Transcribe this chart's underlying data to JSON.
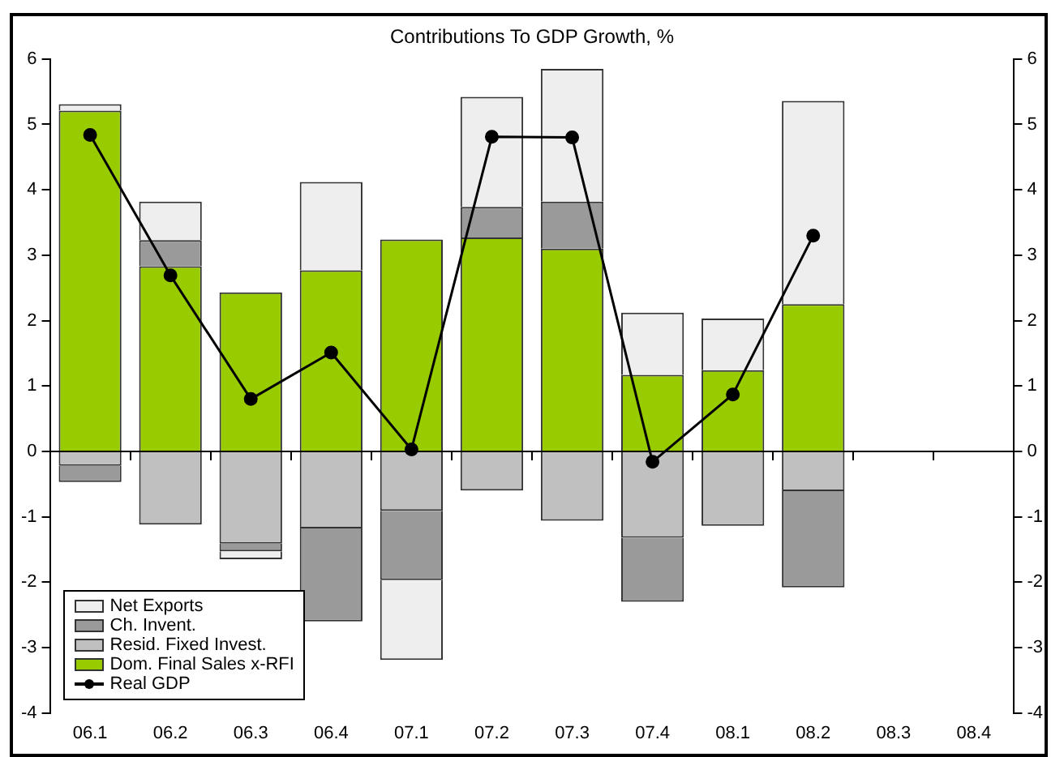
{
  "chart_data": {
    "type": "bar",
    "title": "Contributions To GDP Growth, %",
    "stacked": true,
    "legend": "bottom left",
    "marker": "circle",
    "line_style": "solid",
    "categories": [
      "06.1",
      "06.2",
      "06.3",
      "06.4",
      "07.1",
      "07.2",
      "07.3",
      "07.4",
      "08.1",
      "08.2",
      "08.3",
      "08.4"
    ],
    "ylim": [
      -4,
      6
    ],
    "yticks": [
      -4,
      -3,
      -2,
      -1,
      0,
      1,
      2,
      3,
      4,
      5,
      6
    ],
    "y2lim": [
      -4,
      6
    ],
    "y2ticks": [
      -4,
      -3,
      -2,
      -1,
      0,
      1,
      2,
      3,
      4,
      5,
      6
    ],
    "series": [
      {
        "name": "Dom. Final Sales x-RFI",
        "color": "#99cc00",
        "values": [
          5.21,
          2.83,
          2.43,
          2.77,
          3.24,
          3.27,
          3.1,
          1.17,
          1.24,
          2.25,
          null,
          null
        ]
      },
      {
        "name": "Resid. Fixed Invest.",
        "color": "#c0c0c0",
        "values": [
          -0.22,
          -1.12,
          -1.41,
          -1.18,
          -0.91,
          -0.6,
          -1.06,
          -1.32,
          -1.14,
          -0.61,
          null,
          null
        ]
      },
      {
        "name": "Ch. Invent.",
        "color": "#9a9a9a",
        "values": [
          -0.25,
          0.4,
          -0.12,
          -1.42,
          -1.06,
          0.47,
          0.72,
          -0.98,
          null,
          -1.47,
          null,
          null
        ]
      },
      {
        "name": "Net Exports",
        "color": "#eeeeee",
        "values": [
          0.1,
          0.59,
          -0.12,
          1.35,
          -1.22,
          1.68,
          2.03,
          0.95,
          0.79,
          3.11,
          null,
          null
        ]
      },
      {
        "name": "Real GDP",
        "type": "line",
        "color": "#000000",
        "values": [
          4.84,
          2.69,
          0.8,
          1.51,
          0.03,
          4.81,
          4.8,
          -0.16,
          0.87,
          3.3,
          null,
          null
        ]
      }
    ]
  }
}
